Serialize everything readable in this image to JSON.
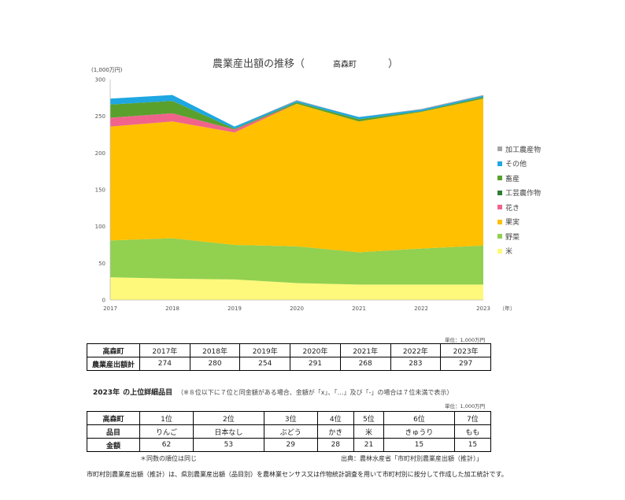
{
  "chart_data": {
    "type": "area",
    "stacked": true,
    "title": "農業産出額の推移（",
    "title_muni": "高森町",
    "title_close": "）",
    "yunit": "(1,000万円)",
    "xunit_label": "（年）",
    "ylim": [
      0,
      300
    ],
    "yticks": [
      "0",
      "50",
      "100",
      "150",
      "200",
      "250",
      "300"
    ],
    "x": [
      "2017",
      "2018",
      "2019",
      "2020",
      "2021",
      "2022",
      "2023"
    ],
    "series": [
      {
        "name": "米",
        "color": "#fef97a",
        "values": [
          31,
          29,
          28,
          23,
          21,
          21,
          21
        ]
      },
      {
        "name": "野菜",
        "color": "#92d050",
        "values": [
          50,
          55,
          47,
          50,
          44,
          49,
          53
        ]
      },
      {
        "name": "果実",
        "color": "#ffc000",
        "values": [
          155,
          159,
          153,
          194,
          178,
          186,
          200
        ]
      },
      {
        "name": "花き",
        "color": "#f0648c",
        "values": [
          12,
          11,
          4,
          0,
          0,
          0,
          0
        ]
      },
      {
        "name": "工芸農作物",
        "color": "#2e7d32",
        "values": [
          0,
          0,
          0,
          0,
          0,
          0,
          0
        ]
      },
      {
        "name": "畜産",
        "color": "#5aa02c",
        "values": [
          18,
          17,
          1,
          2,
          3,
          1,
          2
        ]
      },
      {
        "name": "その他",
        "color": "#1ea7e1",
        "values": [
          8,
          8,
          3,
          2,
          3,
          2,
          2
        ]
      },
      {
        "name": "加工農産物",
        "color": "#a6a6a6",
        "values": [
          0,
          0,
          0,
          1,
          0,
          1,
          1
        ]
      }
    ],
    "legend_position": "right",
    "grid": false
  },
  "summary_table": {
    "unit": "単位：1,000万円",
    "corner": "高森町",
    "row_label": "農業産出額計",
    "years": [
      "2017年",
      "2018年",
      "2019年",
      "2020年",
      "2021年",
      "2022年",
      "2023年"
    ],
    "values": [
      "274",
      "280",
      "254",
      "291",
      "268",
      "283",
      "297"
    ]
  },
  "detail": {
    "year_title": "2023年",
    "title": "の上位詳細品目",
    "note": "（※８位以下に７位と同金額がある場合、金額が「x」、「…」及び「-」の場合は７位未満で表示）",
    "unit": "単位：1,000万円",
    "corner": "高森町",
    "ranks": [
      "1位",
      "2位",
      "3位",
      "4位",
      "5位",
      "6位",
      "7位"
    ],
    "item_label": "品目",
    "items": [
      "りんご",
      "日本なし",
      "ぶどう",
      "かき",
      "米",
      "きゅうり",
      "もも"
    ],
    "amount_label": "金額",
    "amounts": [
      "62",
      "53",
      "29",
      "28",
      "21",
      "15",
      "15"
    ],
    "footnote": "＊同数の順位は同じ",
    "source": "出典：農林水産省「市町村別農業産出額（推計）」"
  },
  "description": "市町村別農業産出額（推計）は、県別農業産出額（品目別）を農林業センサス又は作物統計調査を用いて市町村別に按分して作成した加工統計です。"
}
